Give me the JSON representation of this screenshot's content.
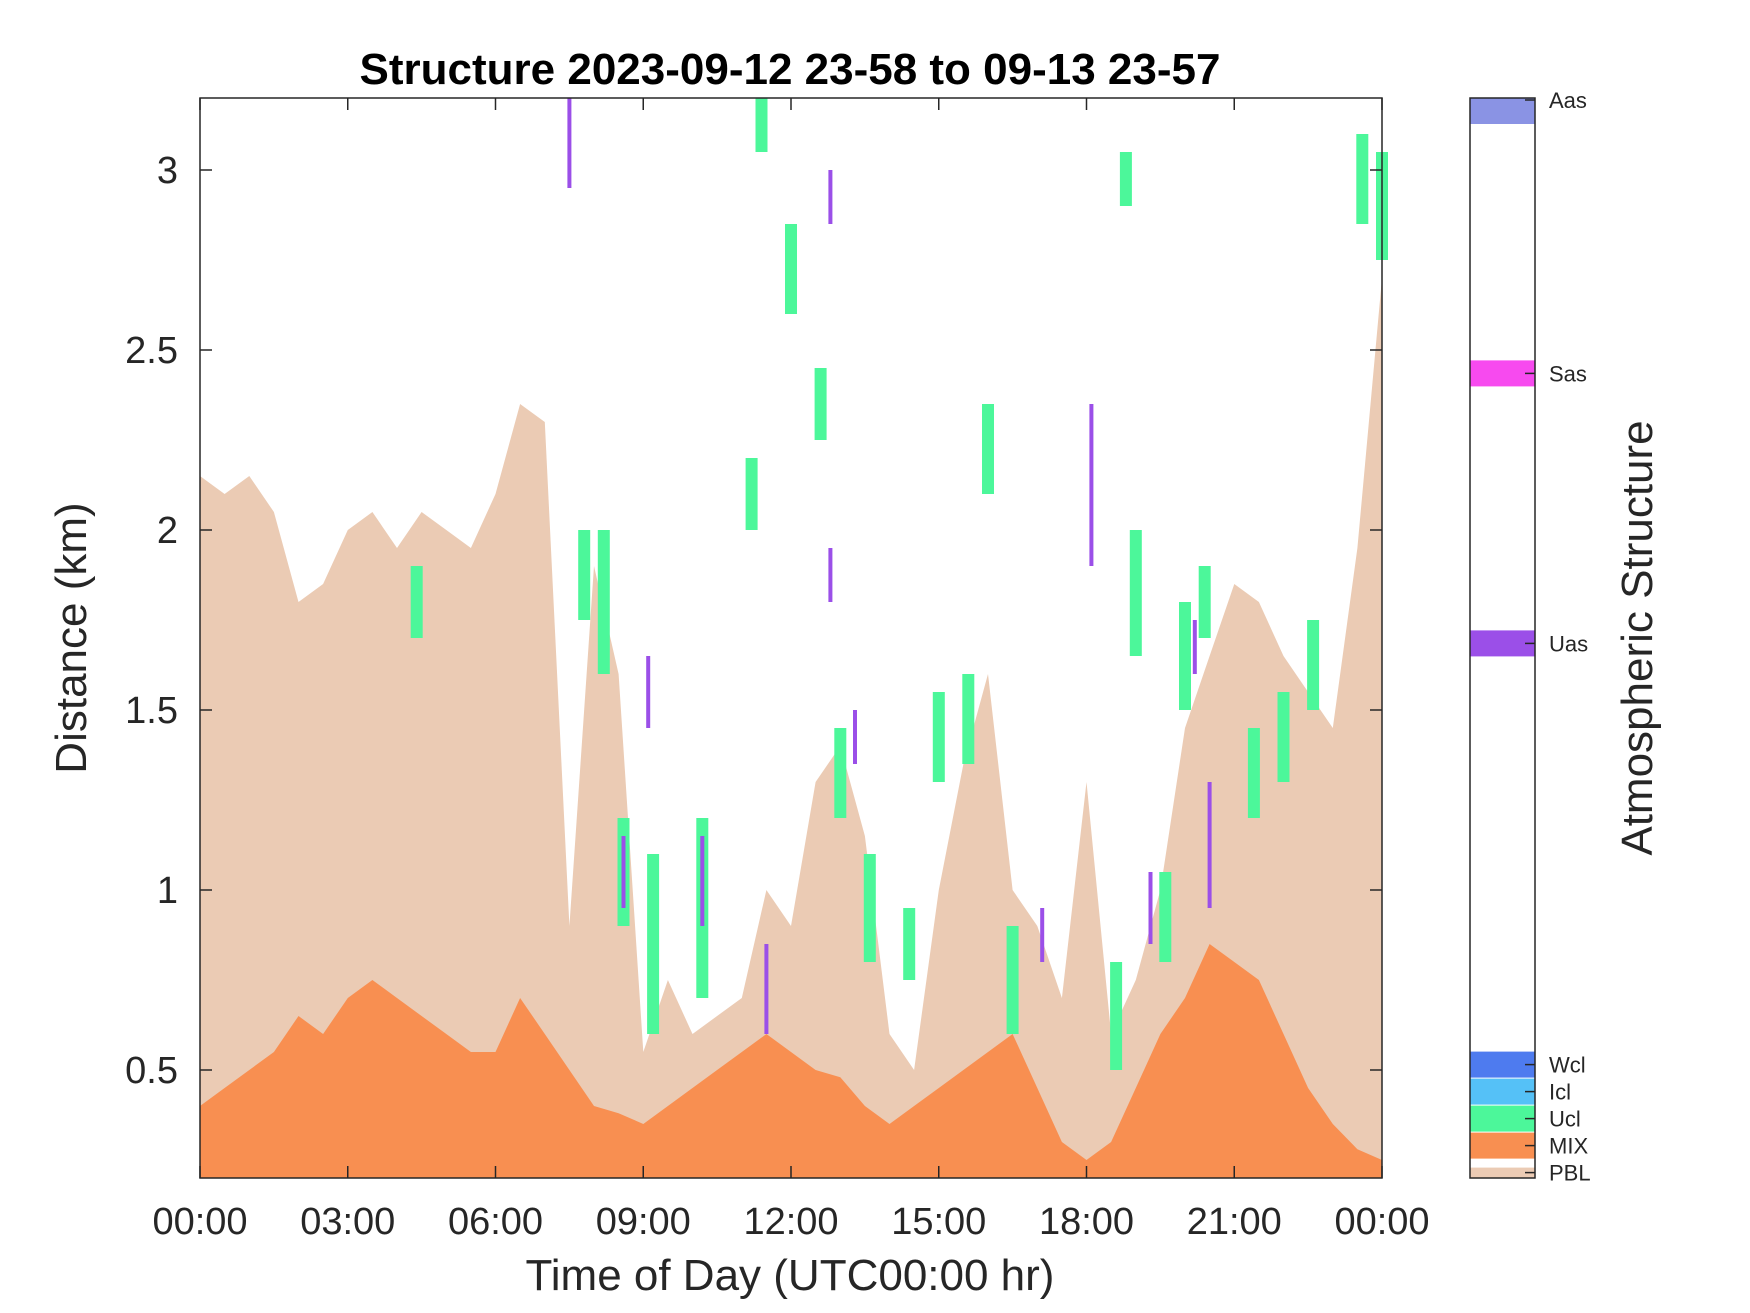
{
  "chart_data": {
    "type": "heatmap",
    "title": "Structure 2023-09-12 23-58 to 09-13 23-57",
    "xlabel": "Time of Day (UTC00:00 hr)",
    "ylabel": "Distance (km)",
    "xlim": [
      0,
      24
    ],
    "ylim": [
      0.2,
      3.2
    ],
    "x_ticks": [
      0,
      3,
      6,
      9,
      12,
      15,
      18,
      21,
      24
    ],
    "x_tick_labels": [
      "00:00",
      "03:00",
      "06:00",
      "09:00",
      "12:00",
      "15:00",
      "18:00",
      "21:00",
      "00:00"
    ],
    "y_ticks": [
      0.5,
      1,
      1.5,
      2,
      2.5,
      3
    ],
    "y_tick_labels": [
      "0.5",
      "1",
      "1.5",
      "2",
      "2.5",
      "3"
    ],
    "grid": false,
    "colorbar": {
      "label": "Atmospheric Structure",
      "categories": [
        {
          "name": "PBL",
          "color": "#EBCBB4"
        },
        {
          "name": "MIX",
          "color": "#F88F51"
        },
        {
          "name": "Ucl",
          "color": "#4CF79A"
        },
        {
          "name": "Icl",
          "color": "#55C1F7"
        },
        {
          "name": "Wcl",
          "color": "#4E7BEF"
        },
        {
          "name": "Uas",
          "color": "#9B4FE8"
        },
        {
          "name": "Sas",
          "color": "#F74AEF"
        },
        {
          "name": "Aas",
          "color": "#8A93E4"
        }
      ]
    },
    "profiles": {
      "hours": [
        0,
        0.5,
        1,
        1.5,
        2,
        2.5,
        3,
        3.5,
        4,
        4.5,
        5,
        5.5,
        6,
        6.5,
        7,
        7.5,
        8,
        8.5,
        9,
        9.5,
        10,
        10.5,
        11,
        11.5,
        12,
        12.5,
        13,
        13.5,
        14,
        14.5,
        15,
        15.5,
        16,
        16.5,
        17,
        17.5,
        18,
        18.5,
        19,
        19.5,
        20,
        20.5,
        21,
        21.5,
        22,
        22.5,
        23,
        23.5,
        24
      ],
      "pbl_top_km": [
        2.15,
        2.1,
        2.15,
        2.05,
        1.8,
        1.85,
        2.0,
        2.05,
        1.95,
        2.05,
        2.0,
        1.95,
        2.1,
        2.35,
        2.3,
        0.9,
        1.9,
        1.6,
        0.55,
        0.75,
        0.6,
        0.65,
        0.7,
        1.0,
        0.9,
        1.3,
        1.4,
        1.15,
        0.6,
        0.5,
        1.0,
        1.35,
        1.6,
        1.0,
        0.9,
        0.7,
        1.3,
        0.6,
        0.75,
        1.0,
        1.45,
        1.65,
        1.85,
        1.8,
        1.65,
        1.55,
        1.45,
        1.95,
        2.7
      ],
      "mix_top_km": [
        0.4,
        0.45,
        0.5,
        0.55,
        0.65,
        0.6,
        0.7,
        0.75,
        0.7,
        0.65,
        0.6,
        0.55,
        0.55,
        0.7,
        0.6,
        0.5,
        0.4,
        0.38,
        0.35,
        0.4,
        0.45,
        0.5,
        0.55,
        0.6,
        0.55,
        0.5,
        0.48,
        0.4,
        0.35,
        0.4,
        0.45,
        0.5,
        0.55,
        0.6,
        0.45,
        0.3,
        0.25,
        0.3,
        0.45,
        0.6,
        0.7,
        0.85,
        0.8,
        0.75,
        0.6,
        0.45,
        0.35,
        0.28,
        0.25
      ],
      "ucl_segments": [
        [
          7.8,
          1.75,
          2.0
        ],
        [
          8.2,
          1.6,
          2.0
        ],
        [
          8.6,
          0.9,
          1.2
        ],
        [
          9.2,
          0.6,
          1.1
        ],
        [
          10.2,
          0.7,
          1.2
        ],
        [
          11.2,
          2.0,
          2.2
        ],
        [
          11.4,
          3.05,
          3.2
        ],
        [
          12.0,
          2.6,
          2.85
        ],
        [
          12.6,
          2.25,
          2.45
        ],
        [
          13.0,
          1.2,
          1.45
        ],
        [
          13.6,
          0.8,
          1.1
        ],
        [
          14.4,
          0.75,
          0.95
        ],
        [
          15.0,
          1.3,
          1.55
        ],
        [
          15.6,
          1.35,
          1.6
        ],
        [
          16.0,
          2.1,
          2.35
        ],
        [
          16.5,
          0.6,
          0.9
        ],
        [
          18.6,
          0.5,
          0.8
        ],
        [
          19.0,
          1.65,
          2.0
        ],
        [
          19.6,
          0.8,
          1.05
        ],
        [
          20.0,
          1.5,
          1.8
        ],
        [
          20.4,
          1.7,
          1.9
        ],
        [
          21.4,
          1.2,
          1.45
        ],
        [
          22.0,
          1.3,
          1.55
        ],
        [
          22.6,
          1.5,
          1.75
        ],
        [
          23.6,
          2.85,
          3.1
        ],
        [
          24.0,
          2.75,
          3.05
        ],
        [
          4.4,
          1.7,
          1.9
        ],
        [
          18.8,
          2.9,
          3.05
        ]
      ],
      "uas_segments": [
        [
          7.5,
          2.95,
          3.2
        ],
        [
          9.1,
          1.45,
          1.65
        ],
        [
          12.8,
          2.85,
          3.0
        ],
        [
          12.8,
          1.8,
          1.95
        ],
        [
          17.1,
          0.8,
          0.95
        ],
        [
          18.1,
          1.9,
          2.35
        ],
        [
          20.2,
          1.6,
          1.75
        ],
        [
          20.5,
          0.95,
          1.3
        ],
        [
          13.3,
          1.35,
          1.5
        ],
        [
          10.2,
          0.9,
          1.15
        ],
        [
          8.6,
          0.95,
          1.15
        ],
        [
          11.5,
          0.6,
          0.85
        ],
        [
          19.3,
          0.85,
          1.05
        ]
      ]
    }
  }
}
